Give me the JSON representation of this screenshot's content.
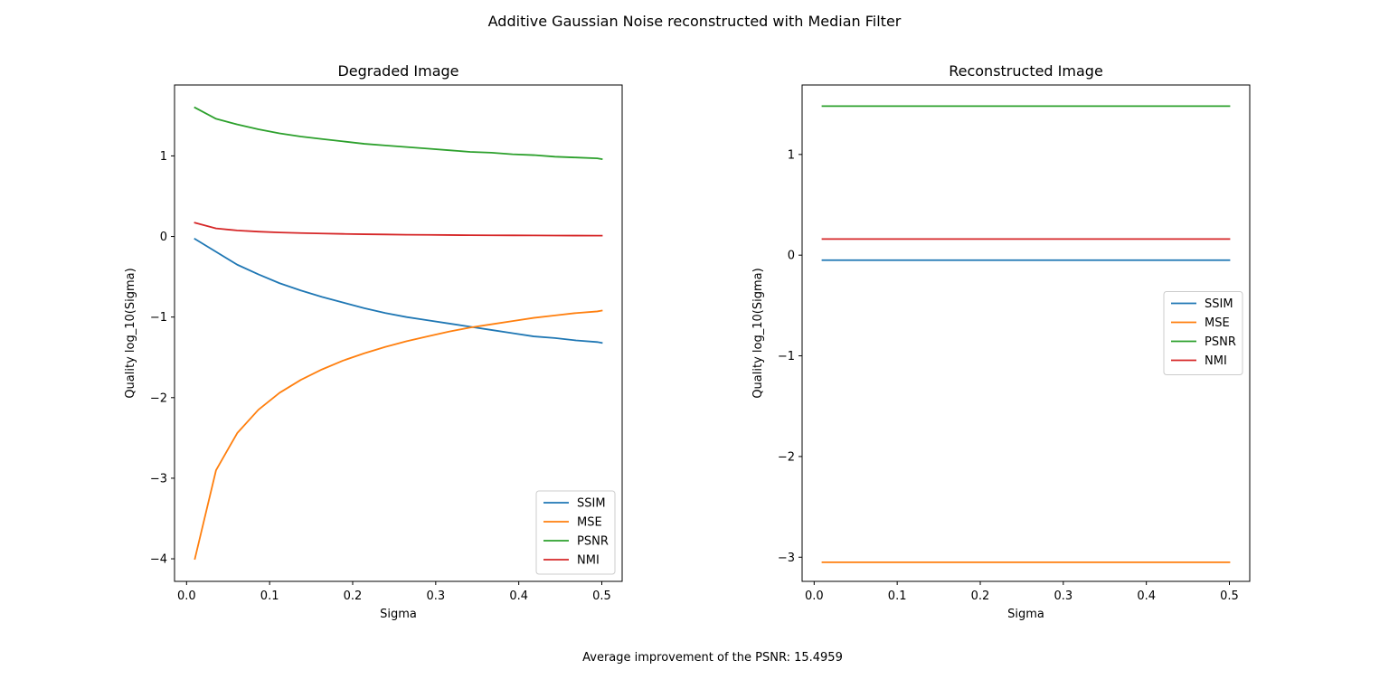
{
  "figure": {
    "suptitle": "Additive Gaussian Noise reconstructed with Median Filter",
    "caption": "Average improvement of the PSNR: 15.4959"
  },
  "colors": {
    "SSIM": "#1f77b4",
    "MSE": "#ff7f0e",
    "PSNR": "#2ca02c",
    "NMI": "#d62728"
  },
  "chart_data": [
    {
      "type": "line",
      "title": "Degraded Image",
      "xlabel": "Sigma",
      "ylabel": "Quality log_10(Sigma)",
      "xlim": [
        -0.0145,
        0.5245
      ],
      "ylim": [
        -4.28,
        1.88
      ],
      "xticks": [
        0.0,
        0.1,
        0.2,
        0.3,
        0.4,
        0.5
      ],
      "xtick_labels": [
        "0.0",
        "0.1",
        "0.2",
        "0.3",
        "0.4",
        "0.5"
      ],
      "yticks": [
        -4,
        -3,
        -2,
        -1,
        0,
        1
      ],
      "ytick_labels": [
        "−4",
        "−3",
        "−2",
        "−1",
        "0",
        "1"
      ],
      "legend_position": "lower right",
      "x": [
        0.01,
        0.0355,
        0.061,
        0.0865,
        0.112,
        0.1375,
        0.163,
        0.1885,
        0.214,
        0.2395,
        0.265,
        0.2905,
        0.316,
        0.3415,
        0.367,
        0.3925,
        0.418,
        0.4435,
        0.469,
        0.4945,
        0.5
      ],
      "series": [
        {
          "name": "SSIM",
          "values": [
            -0.03,
            -0.19,
            -0.35,
            -0.47,
            -0.58,
            -0.67,
            -0.75,
            -0.82,
            -0.89,
            -0.95,
            -1.0,
            -1.04,
            -1.08,
            -1.12,
            -1.16,
            -1.2,
            -1.24,
            -1.26,
            -1.29,
            -1.31,
            -1.32
          ]
        },
        {
          "name": "MSE",
          "values": [
            -4.0,
            -2.9,
            -2.44,
            -2.15,
            -1.94,
            -1.78,
            -1.65,
            -1.54,
            -1.45,
            -1.37,
            -1.3,
            -1.24,
            -1.18,
            -1.13,
            -1.09,
            -1.05,
            -1.01,
            -0.98,
            -0.95,
            -0.93,
            -0.92
          ]
        },
        {
          "name": "PSNR",
          "values": [
            1.6,
            1.46,
            1.39,
            1.33,
            1.28,
            1.24,
            1.21,
            1.18,
            1.15,
            1.13,
            1.11,
            1.09,
            1.07,
            1.05,
            1.04,
            1.02,
            1.01,
            0.99,
            0.98,
            0.97,
            0.96
          ]
        },
        {
          "name": "NMI",
          "values": [
            0.17,
            0.1,
            0.075,
            0.06,
            0.05,
            0.043,
            0.037,
            0.032,
            0.028,
            0.025,
            0.022,
            0.02,
            0.018,
            0.016,
            0.015,
            0.014,
            0.013,
            0.012,
            0.011,
            0.01,
            0.01
          ]
        }
      ]
    },
    {
      "type": "line",
      "title": "Reconstructed Image",
      "xlabel": "Sigma",
      "ylabel": "Quality log_10(Sigma)",
      "xlim": [
        -0.0145,
        0.5245
      ],
      "ylim": [
        -3.24,
        1.69
      ],
      "xticks": [
        0.0,
        0.1,
        0.2,
        0.3,
        0.4,
        0.5
      ],
      "xtick_labels": [
        "0.0",
        "0.1",
        "0.2",
        "0.3",
        "0.4",
        "0.5"
      ],
      "yticks": [
        -3,
        -2,
        -1,
        0,
        1
      ],
      "ytick_labels": [
        "−3",
        "−2",
        "−1",
        "0",
        "1"
      ],
      "legend_position": "center right",
      "x": [
        0.01,
        0.5
      ],
      "series": [
        {
          "name": "SSIM",
          "values": [
            -0.05,
            -0.05
          ]
        },
        {
          "name": "MSE",
          "values": [
            -3.05,
            -3.05
          ]
        },
        {
          "name": "PSNR",
          "values": [
            1.48,
            1.48
          ]
        },
        {
          "name": "NMI",
          "values": [
            0.16,
            0.16
          ]
        }
      ]
    }
  ]
}
